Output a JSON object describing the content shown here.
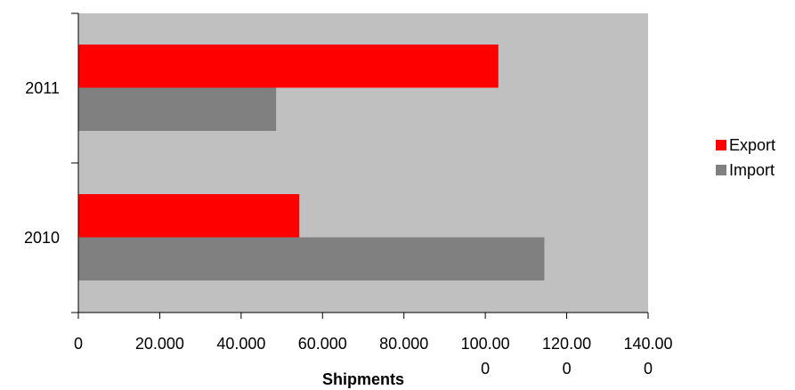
{
  "chart_data": {
    "type": "bar",
    "orientation": "horizontal",
    "categories": [
      "2011",
      "2010"
    ],
    "series": [
      {
        "name": "Export",
        "values": [
          103200,
          54300
        ],
        "color": "#ff0000"
      },
      {
        "name": "Import",
        "values": [
          48600,
          114500
        ],
        "color": "#808080"
      }
    ],
    "title": "",
    "xlabel": "Shipments",
    "ylabel": "",
    "xlim": [
      0,
      140000
    ],
    "x_ticks": [
      {
        "value": 0,
        "lines": [
          "0"
        ]
      },
      {
        "value": 20000,
        "lines": [
          "20.000"
        ]
      },
      {
        "value": 40000,
        "lines": [
          "40.000"
        ]
      },
      {
        "value": 60000,
        "lines": [
          "60.000"
        ]
      },
      {
        "value": 80000,
        "lines": [
          "80.000"
        ]
      },
      {
        "value": 100000,
        "lines": [
          "100.00",
          "0"
        ]
      },
      {
        "value": 120000,
        "lines": [
          "120.00",
          "0"
        ]
      },
      {
        "value": 140000,
        "lines": [
          "140.00",
          "0"
        ]
      }
    ],
    "grid": false,
    "plot_background": "#c0c0c0",
    "legend_position": "right"
  }
}
